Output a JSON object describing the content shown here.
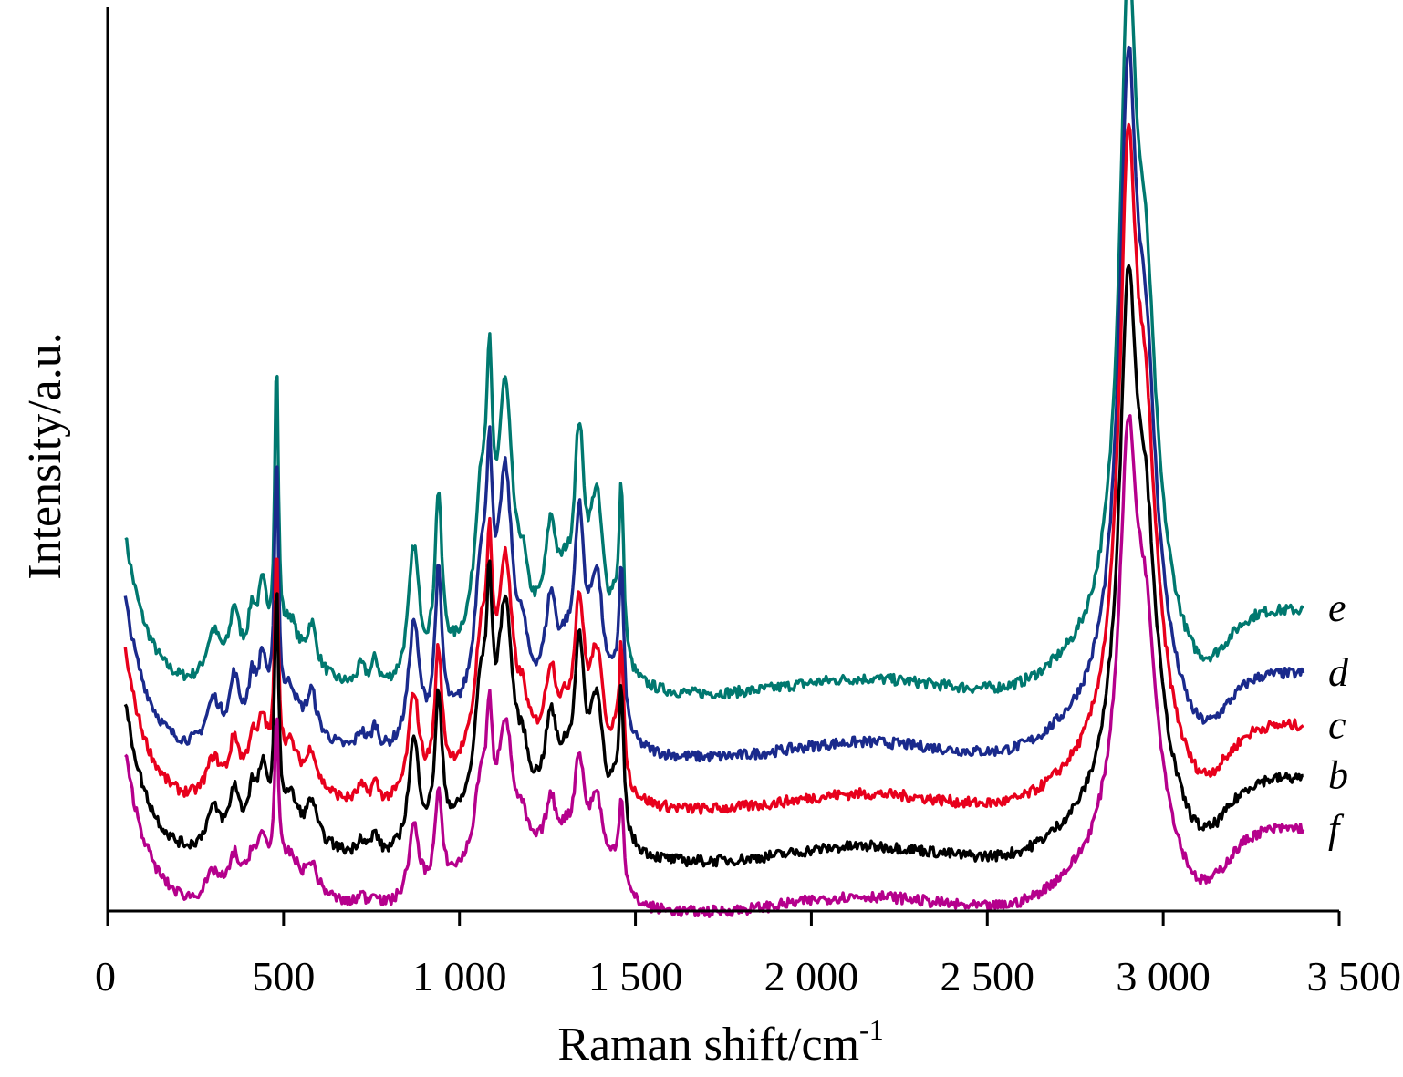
{
  "chart_data": {
    "type": "line",
    "title": "",
    "xlabel": "Raman shift/cm",
    "xlabel_superscript": "-1",
    "ylabel": "Intensity/a.u.",
    "xlim": [
      0,
      3500
    ],
    "x_ticks": [
      0,
      500,
      1000,
      1500,
      2000,
      2500,
      3000,
      3500
    ],
    "x_tick_labels": [
      "0",
      "500",
      "1 000",
      "1 500",
      "2 000",
      "2 500",
      "3 000",
      "3 500"
    ],
    "y_ticks_shown": false,
    "grid": false,
    "legend": "inline-right",
    "peaks": [
      {
        "x": 300,
        "h": 0.09,
        "w": 25
      },
      {
        "x": 360,
        "h": 0.11,
        "w": 15
      },
      {
        "x": 410,
        "h": 0.08,
        "w": 12
      },
      {
        "x": 440,
        "h": 0.12,
        "w": 15
      },
      {
        "x": 480,
        "h": 0.55,
        "w": 6
      },
      {
        "x": 520,
        "h": 0.06,
        "w": 20
      },
      {
        "x": 580,
        "h": 0.08,
        "w": 15
      },
      {
        "x": 720,
        "h": 0.04,
        "w": 15
      },
      {
        "x": 760,
        "h": 0.05,
        "w": 12
      },
      {
        "x": 870,
        "h": 0.25,
        "w": 18
      },
      {
        "x": 940,
        "h": 0.32,
        "w": 12
      },
      {
        "x": 1060,
        "h": 0.25,
        "w": 20
      },
      {
        "x": 1085,
        "h": 0.38,
        "w": 10
      },
      {
        "x": 1130,
        "h": 0.45,
        "w": 25
      },
      {
        "x": 1180,
        "h": 0.08,
        "w": 15
      },
      {
        "x": 1260,
        "h": 0.2,
        "w": 20
      },
      {
        "x": 1300,
        "h": 0.08,
        "w": 20
      },
      {
        "x": 1340,
        "h": 0.38,
        "w": 18
      },
      {
        "x": 1390,
        "h": 0.3,
        "w": 25
      },
      {
        "x": 1440,
        "h": 0.08,
        "w": 15
      },
      {
        "x": 1460,
        "h": 0.32,
        "w": 8
      },
      {
        "x": 2900,
        "h": 1.0,
        "w": 28
      },
      {
        "x": 2950,
        "h": 0.45,
        "w": 35
      }
    ],
    "series": [
      {
        "name": "e",
        "color": "#00786f",
        "offset": 0.235,
        "peak_scale": 1.0,
        "pc": 1.02
      },
      {
        "name": "d",
        "color": "#1a2a8c",
        "offset": 0.165,
        "peak_scale": 0.92,
        "pc": 0.98
      },
      {
        "name": "c",
        "color": "#e8001c",
        "offset": 0.108,
        "peak_scale": 0.78,
        "pc": 0.93
      },
      {
        "name": "b",
        "color": "#000000",
        "offset": 0.05,
        "peak_scale": 0.82,
        "pc": 0.79
      },
      {
        "name": "f",
        "color": "#b5008c",
        "offset": -0.005,
        "peak_scale": 0.55,
        "pc": 0.62
      }
    ]
  }
}
